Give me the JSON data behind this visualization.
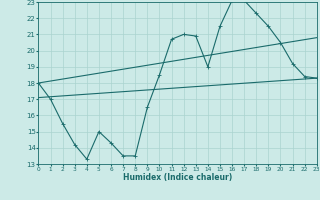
{
  "xlabel": "Humidex (Indice chaleur)",
  "xlim": [
    0,
    23
  ],
  "ylim": [
    13,
    23
  ],
  "yticks": [
    13,
    14,
    15,
    16,
    17,
    18,
    19,
    20,
    21,
    22,
    23
  ],
  "xticks": [
    0,
    1,
    2,
    3,
    4,
    5,
    6,
    7,
    8,
    9,
    10,
    11,
    12,
    13,
    14,
    15,
    16,
    17,
    18,
    19,
    20,
    21,
    22,
    23
  ],
  "bg_color": "#cceae7",
  "grid_color": "#aad4d0",
  "line_color": "#1a6b6b",
  "line1_x": [
    0,
    1,
    2,
    3,
    4,
    5,
    6,
    7,
    8,
    9,
    10,
    11,
    12,
    13,
    14,
    15,
    16,
    17,
    18,
    19,
    20,
    21,
    22,
    23
  ],
  "line1_y": [
    18.0,
    17.0,
    15.5,
    14.2,
    13.3,
    15.0,
    14.3,
    13.5,
    13.5,
    16.5,
    18.5,
    20.7,
    21.0,
    20.9,
    19.0,
    21.5,
    23.1,
    23.1,
    22.3,
    21.5,
    20.5,
    19.2,
    18.4,
    18.3
  ],
  "line2_x": [
    0,
    23
  ],
  "line2_y": [
    17.1,
    18.3
  ],
  "line3_x": [
    0,
    23
  ],
  "line3_y": [
    18.0,
    20.8
  ],
  "markersize": 2.0,
  "linewidth": 0.8
}
